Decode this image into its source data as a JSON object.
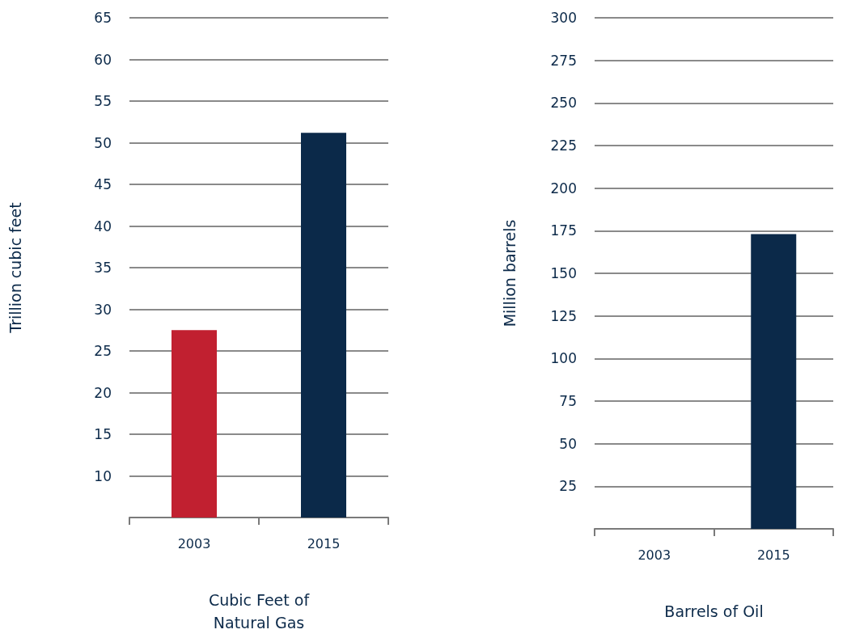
{
  "chart_data": [
    {
      "type": "bar",
      "xlabel": "Cubic Feet of\nNatural Gas",
      "ylabel": "Trillion cubic feet",
      "categories": [
        "2003",
        "2015"
      ],
      "values": [
        27.5,
        51.2
      ],
      "colors": [
        "#c12030",
        "#0b2949"
      ],
      "ylim": [
        5,
        65
      ],
      "yticks": [
        10,
        15,
        20,
        25,
        30,
        35,
        40,
        45,
        50,
        55,
        60,
        65
      ],
      "grid": "y"
    },
    {
      "type": "bar",
      "xlabel": "Barrels of Oil",
      "ylabel": "Million barrels",
      "categories": [
        "2003",
        "2015"
      ],
      "values": [
        0,
        173
      ],
      "colors": [
        "#c12030",
        "#0b2949"
      ],
      "ylim": [
        0,
        300
      ],
      "yticks": [
        25,
        50,
        75,
        100,
        125,
        150,
        175,
        200,
        225,
        250,
        275,
        300
      ],
      "grid": "y"
    }
  ]
}
